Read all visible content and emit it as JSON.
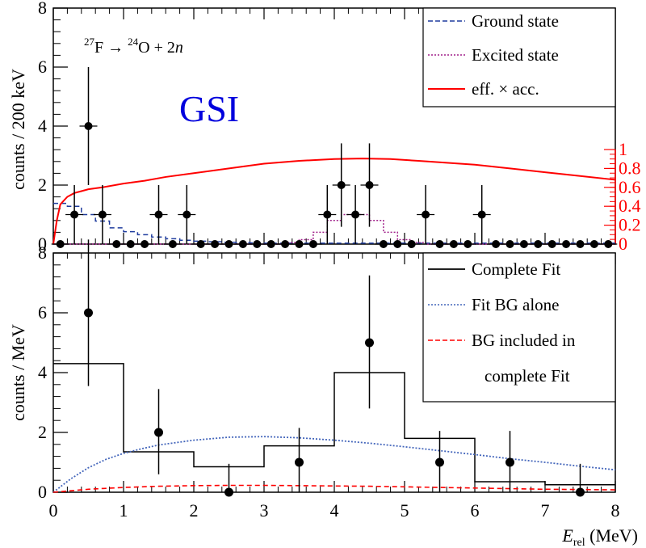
{
  "chart_data": [
    {
      "type": "histogram",
      "panel": "top",
      "ylabel": "counts / 200 keV",
      "xlim": [
        0,
        8
      ],
      "ylim": [
        0,
        8
      ],
      "yticks": [
        "0",
        "2",
        "4",
        "6",
        "8"
      ],
      "right_axis": {
        "color": "#ff0000",
        "ylim": [
          0,
          1
        ],
        "ticks": [
          "0",
          "0.2",
          "0.4",
          "0.6",
          "0.8",
          "1"
        ]
      },
      "annotation": {
        "reaction_parts": [
          "27",
          "F → ",
          "24",
          "O + 2",
          "n"
        ],
        "lab": "GSI"
      },
      "legend": {
        "placement": "top-right",
        "entries": [
          {
            "label": "Ground state",
            "style": "dashed",
            "color": "#1f3c9e"
          },
          {
            "label": "Excited state",
            "style": "dotted",
            "color": "#a0208a"
          },
          {
            "label": "eff. × acc.",
            "style": "solid",
            "color": "#ff0000"
          }
        ]
      },
      "data_points": {
        "x": [
          0.1,
          0.3,
          0.5,
          0.7,
          0.9,
          1.1,
          1.3,
          1.5,
          1.7,
          1.9,
          2.1,
          2.3,
          2.5,
          2.7,
          2.9,
          3.1,
          3.3,
          3.5,
          3.7,
          3.9,
          4.1,
          4.3,
          4.5,
          4.7,
          4.9,
          5.1,
          5.3,
          5.5,
          5.7,
          5.9,
          6.1,
          6.3,
          6.5,
          6.7,
          6.9,
          7.1,
          7.3,
          7.5,
          7.7,
          7.9
        ],
        "y": [
          0,
          1,
          4,
          1,
          0,
          0,
          0,
          1,
          0,
          1,
          0,
          0,
          0,
          0,
          0,
          0,
          0,
          0,
          0,
          1,
          2,
          1,
          2,
          0,
          0,
          0,
          1,
          0,
          0,
          0,
          1,
          0,
          0,
          0,
          0,
          0,
          0,
          0,
          0,
          0
        ]
      },
      "ground_state": {
        "x": [
          0,
          0.2,
          0.4,
          0.6,
          0.8,
          1.0,
          1.2,
          1.4,
          1.6,
          1.8,
          2.0,
          2.2,
          2.4,
          2.6,
          2.8,
          3.0,
          8.0
        ],
        "y": [
          1.38,
          1.28,
          1.0,
          0.78,
          0.55,
          0.42,
          0.32,
          0.24,
          0.18,
          0.13,
          0.1,
          0.08,
          0.06,
          0.05,
          0.04,
          0.03
        ]
      },
      "excited_state": {
        "x": [
          0,
          3.3,
          3.5,
          3.7,
          3.9,
          4.1,
          4.3,
          4.5,
          4.7,
          4.9,
          5.1,
          5.3,
          8.0
        ],
        "y": [
          0,
          0.05,
          0.15,
          0.4,
          0.8,
          1.0,
          1.0,
          0.8,
          0.4,
          0.15,
          0.05,
          0
        ]
      },
      "efficiency_acceptance": {
        "x": [
          0,
          0.05,
          0.1,
          0.2,
          0.3,
          0.4,
          0.5,
          0.7,
          1.0,
          1.3,
          1.6,
          2.0,
          2.5,
          3.0,
          3.5,
          4.0,
          4.4,
          4.8,
          5.2,
          5.6,
          6.0,
          6.5,
          7.0,
          7.5,
          8.0
        ],
        "y": [
          0.0,
          0.25,
          0.42,
          0.5,
          0.54,
          0.56,
          0.58,
          0.6,
          0.64,
          0.67,
          0.71,
          0.75,
          0.8,
          0.85,
          0.88,
          0.9,
          0.905,
          0.9,
          0.88,
          0.86,
          0.84,
          0.8,
          0.76,
          0.72,
          0.68
        ]
      }
    },
    {
      "type": "histogram",
      "panel": "bottom",
      "ylabel": "counts / MeV",
      "xlabel_main": "E",
      "xlabel_sub": "rel",
      "xlabel_unit": " (MeV)",
      "xlim": [
        0,
        8
      ],
      "ylim": [
        0,
        8
      ],
      "xticks": [
        "0",
        "1",
        "2",
        "3",
        "4",
        "5",
        "6",
        "7",
        "8"
      ],
      "yticks": [
        "0",
        "2",
        "4",
        "6",
        "8"
      ],
      "legend": {
        "placement": "top-right",
        "entries": [
          {
            "label": "Complete Fit",
            "style": "solid",
            "color": "#000000"
          },
          {
            "label": "Fit BG alone",
            "style": "dotted",
            "color": "#4466bb"
          },
          {
            "label": "BG included in",
            "style": "dashed",
            "color": "#ff0000"
          },
          {
            "label": "complete Fit",
            "style": "none",
            "color": "#000000"
          }
        ]
      },
      "data_points": {
        "x": [
          0.5,
          1.5,
          2.5,
          3.5,
          4.5,
          5.5,
          6.5,
          7.5
        ],
        "y": [
          6,
          2,
          0,
          1,
          5,
          1,
          1,
          0
        ],
        "err_up": [
          2.45,
          1.45,
          0.95,
          1.15,
          2.25,
          1.05,
          1.05,
          0.95
        ],
        "err_down": [
          2.45,
          1.4,
          0,
          1.0,
          2.2,
          1.0,
          1.0,
          0
        ]
      },
      "complete_fit": {
        "edges": [
          0,
          1,
          2,
          3,
          4,
          5,
          6,
          7,
          8
        ],
        "y": [
          4.3,
          1.35,
          0.85,
          1.55,
          4.0,
          1.8,
          0.35,
          0.25
        ]
      },
      "fit_bg_alone": {
        "x": [
          0,
          0.25,
          0.5,
          0.75,
          1.0,
          1.25,
          1.5,
          2.0,
          2.5,
          3.0,
          3.5,
          4.0,
          4.5,
          5.0,
          5.5,
          6.0,
          6.5,
          7.0,
          7.5,
          8.0
        ],
        "y": [
          0.0,
          0.45,
          0.82,
          1.1,
          1.3,
          1.45,
          1.58,
          1.74,
          1.84,
          1.86,
          1.82,
          1.74,
          1.64,
          1.52,
          1.39,
          1.26,
          1.12,
          1.0,
          0.87,
          0.75
        ]
      },
      "bg_included": {
        "x": [
          0,
          0.5,
          1.0,
          1.5,
          2.0,
          2.5,
          3.0,
          3.5,
          4.0,
          4.5,
          5.0,
          5.5,
          6.0,
          6.5,
          7.0,
          7.5,
          8.0
        ],
        "y": [
          0.0,
          0.1,
          0.16,
          0.2,
          0.22,
          0.23,
          0.23,
          0.22,
          0.21,
          0.2,
          0.18,
          0.16,
          0.14,
          0.12,
          0.1,
          0.09,
          0.08
        ]
      }
    }
  ]
}
